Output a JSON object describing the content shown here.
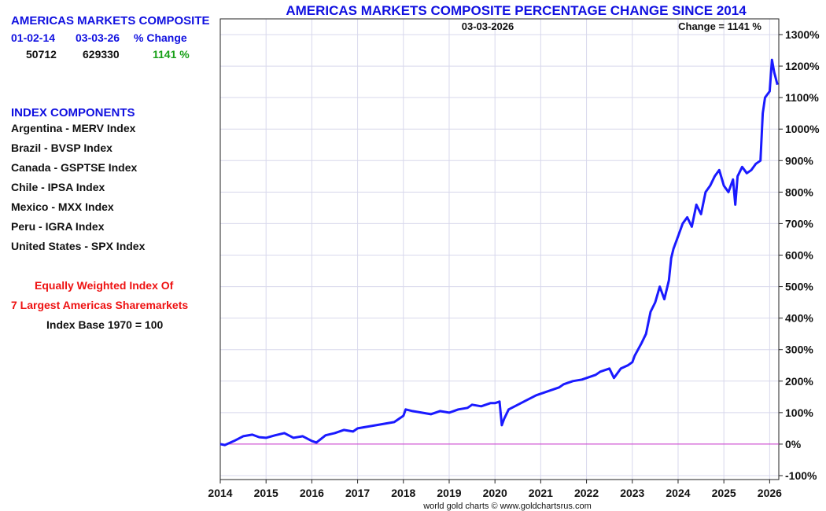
{
  "summary": {
    "title": "AMERICAS MARKETS COMPOSITE",
    "col_headers": [
      "01-02-14",
      "03-03-26",
      "% Change"
    ],
    "values": [
      "50712",
      "629330",
      "1141 %"
    ]
  },
  "components": {
    "heading": "INDEX COMPONENTS",
    "items": [
      "Argentina - MERV Index",
      "Brazil - BVSP Index",
      "Canada - GSPTSE Index",
      "Chile - IPSA Index",
      "Mexico - MXX Index",
      "Peru - IGRA Index",
      "United States - SPX Index"
    ]
  },
  "notes": {
    "line1": "Equally Weighted Index Of",
    "line2": "7 Largest Americas Sharemarkets",
    "line3": "Index Base 1970 = 100"
  },
  "colors": {
    "line": "#1a1aff",
    "zero_line": "#cc33cc",
    "title": "#1010e0",
    "positive": "#18a018",
    "note": "#ee1111",
    "grid": "#d8d8ec"
  },
  "chart_data": {
    "type": "line",
    "title": "AMERICAS MARKETS COMPOSITE PERCENTAGE CHANGE SINCE 2014",
    "date_label": "03-03-2026",
    "change_label": "Change = 1141 %",
    "credit": "world gold charts © www.goldchartsrus.com",
    "xlabel": "",
    "ylabel": "",
    "x_ticks": [
      "2014",
      "2015",
      "2016",
      "2017",
      "2018",
      "2019",
      "2020",
      "2021",
      "2022",
      "2023",
      "2024",
      "2025",
      "2026"
    ],
    "y_ticks": [
      "1300%",
      "1200%",
      "1100%",
      "1000%",
      "900%",
      "800%",
      "700%",
      "600%",
      "500%",
      "400%",
      "300%",
      "200%",
      "100%",
      "0%",
      "-100%"
    ],
    "xlim": [
      2014.0,
      2026.2
    ],
    "ylim": [
      -100,
      1300
    ],
    "grid": true,
    "series": [
      {
        "x": [
          2014.0,
          2014.1,
          2014.3,
          2014.5,
          2014.7,
          2014.85,
          2015.0,
          2015.2,
          2015.4,
          2015.6,
          2015.8,
          2016.0,
          2016.1,
          2016.3,
          2016.5,
          2016.7,
          2016.9,
          2017.0,
          2017.2,
          2017.4,
          2017.6,
          2017.8,
          2018.0,
          2018.05,
          2018.2,
          2018.4,
          2018.6,
          2018.8,
          2019.0,
          2019.2,
          2019.4,
          2019.5,
          2019.7,
          2019.9,
          2020.0,
          2020.1,
          2020.15,
          2020.2,
          2020.3,
          2020.5,
          2020.7,
          2020.9,
          2021.0,
          2021.2,
          2021.4,
          2021.5,
          2021.7,
          2021.9,
          2022.0,
          2022.2,
          2022.3,
          2022.5,
          2022.6,
          2022.75,
          2022.9,
          2023.0,
          2023.05,
          2023.2,
          2023.3,
          2023.4,
          2023.5,
          2023.6,
          2023.7,
          2023.8,
          2023.85,
          2023.9,
          2024.0,
          2024.1,
          2024.2,
          2024.3,
          2024.4,
          2024.5,
          2024.6,
          2024.7,
          2024.8,
          2024.9,
          2025.0,
          2025.1,
          2025.2,
          2025.25,
          2025.3,
          2025.4,
          2025.5,
          2025.6,
          2025.7,
          2025.8,
          2025.85,
          2025.9,
          2026.0,
          2026.05,
          2026.1,
          2026.17
        ],
        "y": [
          0,
          -3,
          10,
          25,
          30,
          22,
          20,
          28,
          35,
          20,
          25,
          10,
          5,
          28,
          35,
          45,
          40,
          50,
          55,
          60,
          65,
          70,
          90,
          110,
          105,
          100,
          95,
          105,
          100,
          110,
          115,
          125,
          120,
          130,
          130,
          135,
          60,
          80,
          110,
          125,
          140,
          155,
          160,
          170,
          180,
          190,
          200,
          205,
          210,
          220,
          230,
          240,
          210,
          240,
          250,
          260,
          280,
          320,
          350,
          420,
          450,
          500,
          460,
          520,
          590,
          620,
          660,
          700,
          720,
          690,
          760,
          730,
          800,
          820,
          850,
          870,
          820,
          800,
          840,
          760,
          850,
          880,
          860,
          870,
          890,
          900,
          1050,
          1100,
          1120,
          1220,
          1180,
          1141
        ]
      }
    ]
  }
}
